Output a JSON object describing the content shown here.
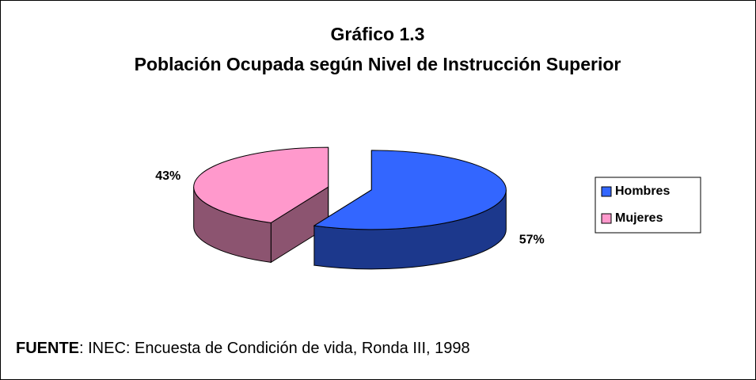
{
  "chart_data": {
    "type": "pie",
    "title": "Gráfico 1.3",
    "subtitle": "Población Ocupada según Nivel de Instrucción Superior",
    "categories": [
      "Hombres",
      "Mujeres"
    ],
    "values": [
      57,
      43
    ],
    "value_labels": [
      "57%",
      "43%"
    ],
    "colors": [
      "#3366ff",
      "#ff99cc"
    ],
    "legend": "right"
  },
  "source": {
    "label": "FUENTE",
    "text": ": INEC: Encuesta de Condición de vida,  Ronda III, 1998"
  }
}
